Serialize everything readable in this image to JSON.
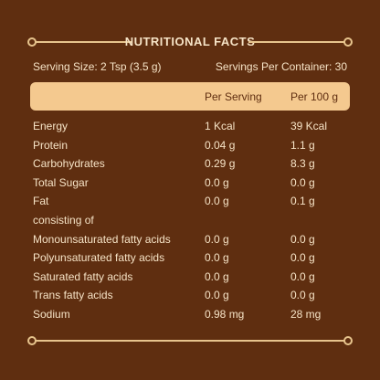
{
  "title": "NUTRITIONAL FACTS",
  "serving_size": "Serving Size: 2 Tsp (3.5 g)",
  "servings_per_container": "Servings Per Container: 30",
  "columns": {
    "per_serving": "Per Serving",
    "per_100g": "Per 100 g"
  },
  "rows": [
    {
      "label": "Energy",
      "per_serving": "1 Kcal",
      "per_100g": "39 Kcal"
    },
    {
      "label": "Protein",
      "per_serving": "0.04 g",
      "per_100g": "1.1 g"
    },
    {
      "label": "Carbohydrates",
      "per_serving": "0.29 g",
      "per_100g": "8.3 g"
    },
    {
      "label": "Total Sugar",
      "per_serving": "0.0 g",
      "per_100g": "0.0 g"
    },
    {
      "label": "Fat",
      "per_serving": "0.0 g",
      "per_100g": "0.1 g"
    },
    {
      "label": "consisting of",
      "per_serving": "",
      "per_100g": ""
    },
    {
      "label": "Monounsaturated fatty acids",
      "per_serving": "0.0 g",
      "per_100g": "0.0 g"
    },
    {
      "label": "Polyunsaturated fatty acids",
      "per_serving": "0.0 g",
      "per_100g": "0.0 g"
    },
    {
      "label": "Saturated fatty acids",
      "per_serving": "0.0 g",
      "per_100g": "0.0 g"
    },
    {
      "label": "Trans fatty acids",
      "per_serving": "0.0 g",
      "per_100g": "0.0 g"
    },
    {
      "label": "Sodium",
      "per_serving": "0.98 mg",
      "per_100g": "28 mg"
    }
  ],
  "colors": {
    "background": "#5f2e10",
    "accent": "#f4c98f",
    "text": "#f6e3c6"
  }
}
